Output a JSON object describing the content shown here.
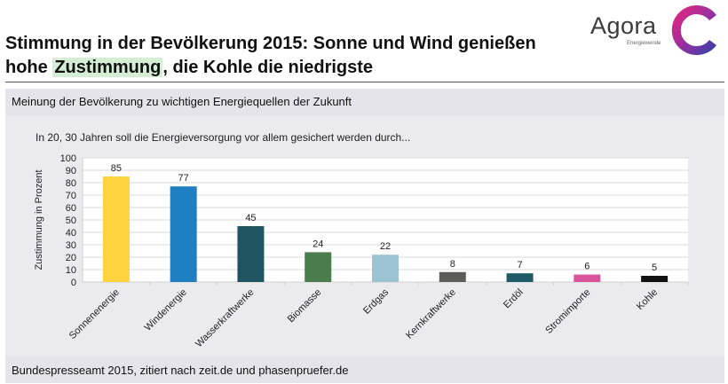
{
  "header": {
    "title_part1": "Stimmung in der Bevölkerung 2015: Sonne und Wind genießen",
    "title_part2_pre": "hohe ",
    "title_highlight": "Zustimmung",
    "title_part2_post": ", die Kohle die niedrigste"
  },
  "logo": {
    "word": "Agora",
    "sub": "Energiewende"
  },
  "panel": {
    "subtitle": "Meinung der Bevölkerung zu wichtigen Energiequellen der Zukunft",
    "question": "In 20, 30 Jahren soll die Energieversorgung vor allem gesichert werden durch...",
    "source": "Bundespresseamt 2015, zitiert nach zeit.de und phasenpruefer.de"
  },
  "colors": {
    "highlight": "#d5ecd5",
    "bars": [
      "#ffd23f",
      "#1f7fc2",
      "#1e5560",
      "#4a7c4e",
      "#9bc3d2",
      "#5c5c58",
      "#1f5a66",
      "#d8559c",
      "#111111"
    ]
  },
  "chart_data": {
    "type": "bar",
    "categories": [
      "Sonnenenergie",
      "Windenergie",
      "Wasserkraftwerke",
      "Biomasse",
      "Erdgas",
      "Kernkraftwerke",
      "Erdöl",
      "Stromimporte",
      "Kohle"
    ],
    "values": [
      85,
      77,
      45,
      24,
      22,
      8,
      7,
      6,
      5
    ],
    "ylabel": "Zustimmung in Prozent",
    "xlabel": "",
    "ylim": [
      0,
      100
    ],
    "yticks": [
      0,
      10,
      20,
      30,
      40,
      50,
      60,
      70,
      80,
      90,
      100
    ],
    "grid": true,
    "data_labels": true
  }
}
